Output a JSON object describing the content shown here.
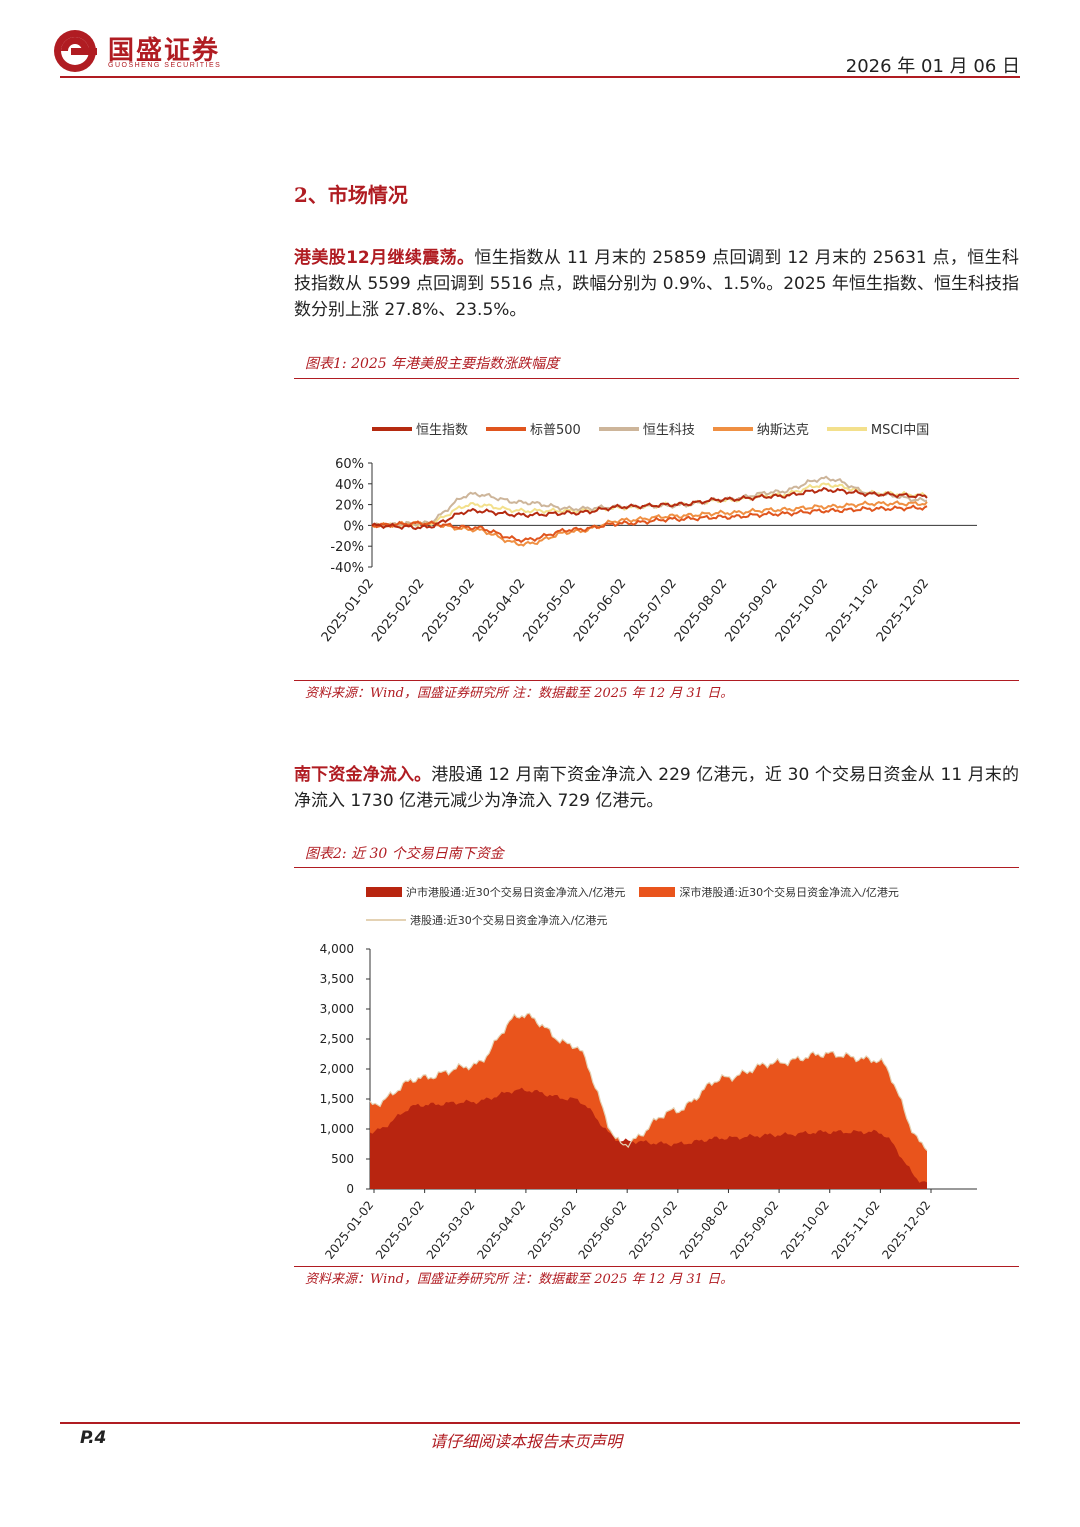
{
  "header": {
    "company_cn": "国盛证券",
    "company_en": "GUOSHENG SECURITIES",
    "date": "2026 年 01 月 06 日"
  },
  "section": {
    "title": "2、市场情况"
  },
  "para1": {
    "lead": "港美股12月继续震荡。",
    "body": "恒生指数从 11 月末的 25859 点回调到 12 月末的 25631 点，恒生科技指数从 5599 点回调到 5516 点，跌幅分别为 0.9%、1.5%。2025 年恒生指数、恒生科技指数分别上涨 27.8%、23.5%。"
  },
  "fig1": {
    "title": "图表1:  2025 年港美股主要指数涨跌幅度",
    "source": "资料来源：Wind，国盛证券研究所    注：数据截至 2025 年 12 月 31 日。"
  },
  "para2": {
    "lead": "南下资金净流入。",
    "body": "港股通 12 月南下资金净流入 229 亿港元，近 30 个交易日资金从 11 月末的净流入 1730 亿港元减少为净流入 729 亿港元。"
  },
  "fig2": {
    "title": "图表2:  近 30 个交易日南下资金",
    "source": "资料来源：Wind，国盛证券研究所    注：数据截至 2025 年 12 月 31 日。"
  },
  "footer": {
    "page": "P.4",
    "note": "请仔细阅读本报告末页声明"
  },
  "colors": {
    "brand": "#b01c22"
  },
  "chart_data": [
    {
      "type": "line",
      "title": "",
      "x": [
        "2025-01-02",
        "2025-02-02",
        "2025-03-02",
        "2025-04-02",
        "2025-05-02",
        "2025-06-02",
        "2025-07-02",
        "2025-08-02",
        "2025-09-02",
        "2025-10-02",
        "2025-11-02",
        "2025-12-02"
      ],
      "ylim": [
        -40,
        60
      ],
      "yticks": [
        "60%",
        "40%",
        "20%",
        "0%",
        "-20%",
        "-40%"
      ],
      "series": [
        {
          "name": "恒生指数",
          "color": "#b52a10",
          "values": [
            0,
            -2,
            14,
            10,
            12,
            18,
            20,
            25,
            28,
            34,
            30,
            28
          ]
        },
        {
          "name": "标普500",
          "color": "#e0551e",
          "values": [
            0,
            2,
            -2,
            -14,
            -4,
            2,
            6,
            8,
            11,
            14,
            16,
            17
          ]
        },
        {
          "name": "恒生科技",
          "color": "#cdb59a",
          "values": [
            0,
            2,
            30,
            22,
            16,
            18,
            19,
            25,
            32,
            45,
            30,
            24
          ]
        },
        {
          "name": "纳斯达克",
          "color": "#ef8f42",
          "values": [
            0,
            2,
            -4,
            -18,
            -6,
            5,
            9,
            12,
            15,
            18,
            21,
            21
          ]
        },
        {
          "name": "MSCI中国",
          "color": "#f3e08c",
          "values": [
            0,
            1,
            20,
            14,
            14,
            17,
            20,
            24,
            29,
            39,
            31,
            29
          ]
        }
      ]
    },
    {
      "type": "area",
      "title": "",
      "x": [
        "2025-01-02",
        "2025-02-02",
        "2025-03-02",
        "2025-04-02",
        "2025-05-02",
        "2025-06-02",
        "2025-07-02",
        "2025-08-02",
        "2025-09-02",
        "2025-10-02",
        "2025-11-02",
        "2025-12-02"
      ],
      "ylim": [
        0,
        4000
      ],
      "yticks": [
        "4,000",
        "3,500",
        "3,000",
        "2,500",
        "2,000",
        "1,500",
        "1,000",
        "500",
        "0"
      ],
      "series": [
        {
          "name": "沪市港股通:近30个交易日资金净流入/亿港元",
          "color": "#b82510",
          "values": [
            950,
            1400,
            1450,
            1650,
            1500,
            800,
            750,
            850,
            900,
            950,
            950,
            100
          ]
        },
        {
          "name": "深市港股通:近30个交易日资金净流入/亿港元",
          "color": "#e9541c",
          "values": [
            450,
            450,
            600,
            1250,
            900,
            -50,
            550,
            1000,
            1200,
            1300,
            1200,
            600
          ]
        },
        {
          "name": "港股通:近30个交易日资金净流入/亿港元",
          "color": "#e4d2b4",
          "values": [
            1400,
            1850,
            2050,
            2900,
            2400,
            750,
            1300,
            1850,
            2100,
            2250,
            2150,
            700
          ]
        }
      ]
    }
  ]
}
